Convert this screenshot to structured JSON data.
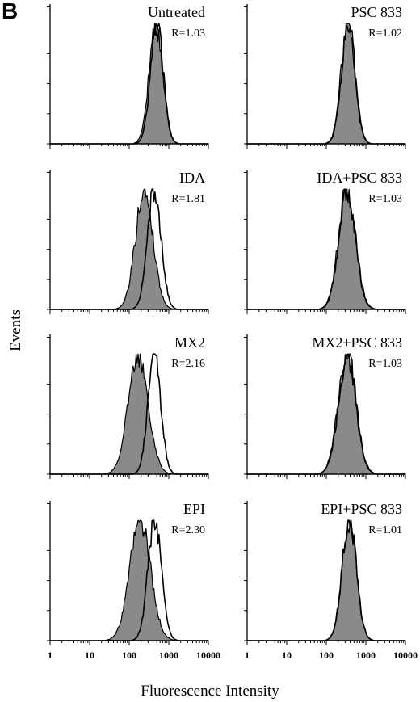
{
  "figure": {
    "panel_letter": "B",
    "ylabel": "Events",
    "xlabel": "Fluorescence Intensity",
    "x_tick_labels": [
      "1",
      "10",
      "100",
      "1000",
      "10000"
    ],
    "colors": {
      "filled": "#8a8a8a",
      "outline": "#000000",
      "axis": "#000000"
    }
  },
  "chart_data": [
    {
      "type": "area",
      "title": "Untreated",
      "ratio_label": "R=1.03",
      "xscale": "log",
      "xlim": [
        1,
        10000
      ],
      "series": [
        {
          "kind": "filled",
          "peak": 470,
          "width": 0.17
        },
        {
          "kind": "outline",
          "peak": 500,
          "width": 0.16
        }
      ]
    },
    {
      "type": "area",
      "title": "PSC 833",
      "ratio_label": "R=1.02",
      "xscale": "log",
      "xlim": [
        1,
        10000
      ],
      "series": [
        {
          "kind": "filled",
          "peak": 350,
          "width": 0.17
        },
        {
          "kind": "outline",
          "peak": 360,
          "width": 0.17
        }
      ]
    },
    {
      "type": "area",
      "title": "IDA",
      "ratio_label": "R=1.81",
      "xscale": "log",
      "xlim": [
        1,
        10000
      ],
      "series": [
        {
          "kind": "filled",
          "peak": 240,
          "width": 0.22
        },
        {
          "kind": "outline",
          "peak": 430,
          "width": 0.17
        }
      ]
    },
    {
      "type": "area",
      "title": "IDA+PSC 833",
      "ratio_label": "R=1.03",
      "xscale": "log",
      "xlim": [
        1,
        10000
      ],
      "series": [
        {
          "kind": "filled",
          "peak": 330,
          "width": 0.21
        },
        {
          "kind": "outline",
          "peak": 340,
          "width": 0.21
        }
      ]
    },
    {
      "type": "area",
      "title": "MX2",
      "ratio_label": "R=2.16",
      "xscale": "log",
      "xlim": [
        1,
        10000
      ],
      "series": [
        {
          "kind": "filled",
          "peak": 170,
          "width": 0.25
        },
        {
          "kind": "outline",
          "peak": 430,
          "width": 0.16
        }
      ]
    },
    {
      "type": "area",
      "title": "MX2+PSC 833",
      "ratio_label": "R=1.03",
      "xscale": "log",
      "xlim": [
        1,
        10000
      ],
      "series": [
        {
          "kind": "filled",
          "peak": 330,
          "width": 0.22
        },
        {
          "kind": "outline",
          "peak": 340,
          "width": 0.22
        }
      ]
    },
    {
      "type": "area",
      "title": "EPI",
      "ratio_label": "R=2.30",
      "xscale": "log",
      "xlim": [
        1,
        10000
      ],
      "series": [
        {
          "kind": "filled",
          "peak": 190,
          "width": 0.26
        },
        {
          "kind": "outline",
          "peak": 440,
          "width": 0.17
        }
      ]
    },
    {
      "type": "area",
      "title": "EPI+PSC 833",
      "ratio_label": "R=1.01",
      "xscale": "log",
      "xlim": [
        1,
        10000
      ],
      "series": [
        {
          "kind": "filled",
          "peak": 380,
          "width": 0.18
        },
        {
          "kind": "outline",
          "peak": 380,
          "width": 0.18
        }
      ]
    }
  ]
}
